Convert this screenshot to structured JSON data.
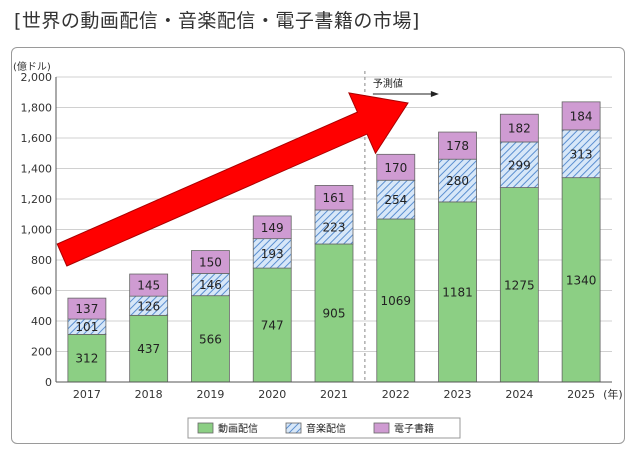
{
  "page": {
    "title": "[世界の動画配信・音楽配信・電子書籍の市場]"
  },
  "chart_data": {
    "type": "bar",
    "stacked": true,
    "categories": [
      "2017",
      "2018",
      "2019",
      "2020",
      "2021",
      "2022",
      "2023",
      "2024",
      "2025"
    ],
    "x_unit": "(年)",
    "y_unit": "(億ドル)",
    "ylim": [
      0,
      2000
    ],
    "yticks": [
      0,
      200,
      400,
      600,
      800,
      1000,
      1200,
      1400,
      1600,
      1800,
      2000
    ],
    "ytick_labels": [
      "0",
      "200",
      "400",
      "600",
      "800",
      "1,000",
      "1,200",
      "1,400",
      "1,600",
      "1,800",
      "2,000"
    ],
    "grid": true,
    "legend_position": "bottom",
    "series": [
      {
        "name": "動画配信",
        "values": [
          312,
          437,
          566,
          747,
          905,
          1069,
          1181,
          1275,
          1340
        ],
        "color": "#8ccf84",
        "pattern": "solid"
      },
      {
        "name": "音楽配信",
        "values": [
          101,
          126,
          146,
          193,
          223,
          254,
          280,
          299,
          313
        ],
        "color": "#a9c8ec",
        "pattern": "hatch"
      },
      {
        "name": "電子書籍",
        "values": [
          137,
          145,
          150,
          149,
          161,
          170,
          178,
          182,
          184
        ],
        "color": "#cf9bd2",
        "pattern": "solid"
      }
    ],
    "annotations": {
      "forecast_label": "予測値",
      "forecast_start_category": "2022",
      "trend_arrow_color": "#ff0000"
    }
  }
}
